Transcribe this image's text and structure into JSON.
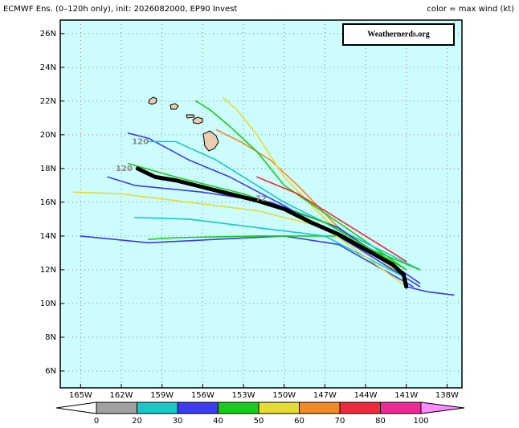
{
  "chart_data": {
    "type": "track-map",
    "title": "ECMWF Ens. (0–120h only), init: 2026082000, EP90 Invest",
    "subtitle": "color = max wind (kt)",
    "watermark": "Weathernerds.org",
    "xlim": [
      -166.5,
      -136.9
    ],
    "ylim": [
      5,
      26.8
    ],
    "xticks": [
      {
        "value": -165,
        "label": "165W"
      },
      {
        "value": -162,
        "label": "162W"
      },
      {
        "value": -159,
        "label": "159W"
      },
      {
        "value": -156,
        "label": "156W"
      },
      {
        "value": -153,
        "label": "153W"
      },
      {
        "value": -150,
        "label": "150W"
      },
      {
        "value": -147,
        "label": "147W"
      },
      {
        "value": -144,
        "label": "144W"
      },
      {
        "value": -141,
        "label": "141W"
      },
      {
        "value": -138,
        "label": "138W"
      }
    ],
    "yticks": [
      {
        "value": 6,
        "label": "6N"
      },
      {
        "value": 8,
        "label": "8N"
      },
      {
        "value": 10,
        "label": "10N"
      },
      {
        "value": 12,
        "label": "12N"
      },
      {
        "value": 14,
        "label": "14N"
      },
      {
        "value": 16,
        "label": "16N"
      },
      {
        "value": 18,
        "label": "18N"
      },
      {
        "value": 20,
        "label": "20N"
      },
      {
        "value": 22,
        "label": "22N"
      },
      {
        "value": 24,
        "label": "24N"
      },
      {
        "value": 26,
        "label": "26N"
      }
    ],
    "grid": true,
    "series": [
      {
        "color": "#f08a24",
        "x": [
          -141,
          -146,
          -149,
          -151,
          -153,
          -155
        ],
        "y": [
          11.5,
          14.5,
          17,
          18.5,
          19.5,
          20.3
        ]
      },
      {
        "color": "#e6dc32",
        "x": [
          -141,
          -147,
          -150,
          -152,
          -153.5,
          -154.5
        ],
        "y": [
          11.5,
          15,
          17.5,
          20,
          21.5,
          22.2
        ]
      },
      {
        "color": "#19cc19",
        "x": [
          -141,
          -146,
          -150,
          -152,
          -154,
          -155.5,
          -156.5
        ],
        "y": [
          12,
          14.8,
          17,
          19,
          20.5,
          21.5,
          22
        ]
      },
      {
        "color": "#3c3cf0",
        "x": [
          -140,
          -145,
          -150,
          -154,
          -157,
          -160,
          -161.5
        ],
        "y": [
          11,
          13.5,
          15.8,
          17.5,
          18.5,
          19.8,
          20.1
        ]
      },
      {
        "color": "#19c8c8",
        "x": [
          -140,
          -145,
          -150,
          -155,
          -158,
          -160
        ],
        "y": [
          12,
          14,
          16,
          18.5,
          19.6,
          19.6
        ]
      },
      {
        "color": "#3c3cf0",
        "x": [
          -140.5,
          -146,
          -150,
          -155,
          -160,
          -165
        ],
        "y": [
          11,
          13.5,
          14,
          13.8,
          13.6,
          14
        ]
      },
      {
        "color": "#19cc19",
        "x": [
          -140,
          -146,
          -152,
          -158,
          -160
        ],
        "y": [
          12,
          14,
          14,
          13.9,
          13.8
        ]
      },
      {
        "color": "#19c8c8",
        "x": [
          -141,
          -147,
          -152,
          -157,
          -161
        ],
        "y": [
          11.5,
          14,
          14.5,
          15,
          15.1
        ]
      },
      {
        "color": "#e6dc32",
        "x": [
          -141,
          -147,
          -152,
          -157,
          -162,
          -165.5
        ],
        "y": [
          11,
          14.5,
          15.5,
          16,
          16.5,
          16.6
        ]
      },
      {
        "color": "#3c3cf0",
        "x": [
          -140,
          -146,
          -151,
          -156,
          -161,
          -163
        ],
        "y": [
          11.2,
          14.5,
          16,
          16.6,
          17,
          17.5
        ]
      },
      {
        "color": "#19cc19",
        "x": [
          -141,
          -147,
          -153,
          -158,
          -161.5
        ],
        "y": [
          12,
          14.8,
          16.5,
          17.5,
          18.3
        ]
      },
      {
        "color": "#f0283c",
        "x": [
          -141,
          -146,
          -149,
          -152
        ],
        "y": [
          12.5,
          15,
          16.5,
          17.5
        ]
      },
      {
        "color": "#3c3cf0",
        "x": [
          -141,
          -139.5,
          -137.5
        ],
        "y": [
          11,
          10.7,
          10.5
        ]
      },
      {
        "color": "#000000",
        "x": [
          -141,
          -141.2,
          -142,
          -144,
          -146,
          -148,
          -150,
          -152,
          -154,
          -156,
          -158,
          -159.5,
          -160.8
        ],
        "y": [
          11,
          11.7,
          12.3,
          13.2,
          14.1,
          14.8,
          15.6,
          16.1,
          16.5,
          16.9,
          17.3,
          17.5,
          18.0
        ]
      }
    ],
    "annotations": [
      {
        "text": "120",
        "x": -160.6,
        "y": 19.6
      },
      {
        "text": "120",
        "x": -161.8,
        "y": 18.0
      },
      {
        "text": "72",
        "x": -151.7,
        "y": 16.2
      }
    ],
    "colorbar": {
      "levels": [
        0,
        20,
        30,
        40,
        50,
        60,
        70,
        80,
        100
      ],
      "colors": [
        "#ffffff",
        "#a0a0a0",
        "#19c8c8",
        "#3c3cf0",
        "#19cc19",
        "#e6dc32",
        "#f08a24",
        "#f0283c",
        "#f02896",
        "#ff8cff"
      ]
    }
  }
}
